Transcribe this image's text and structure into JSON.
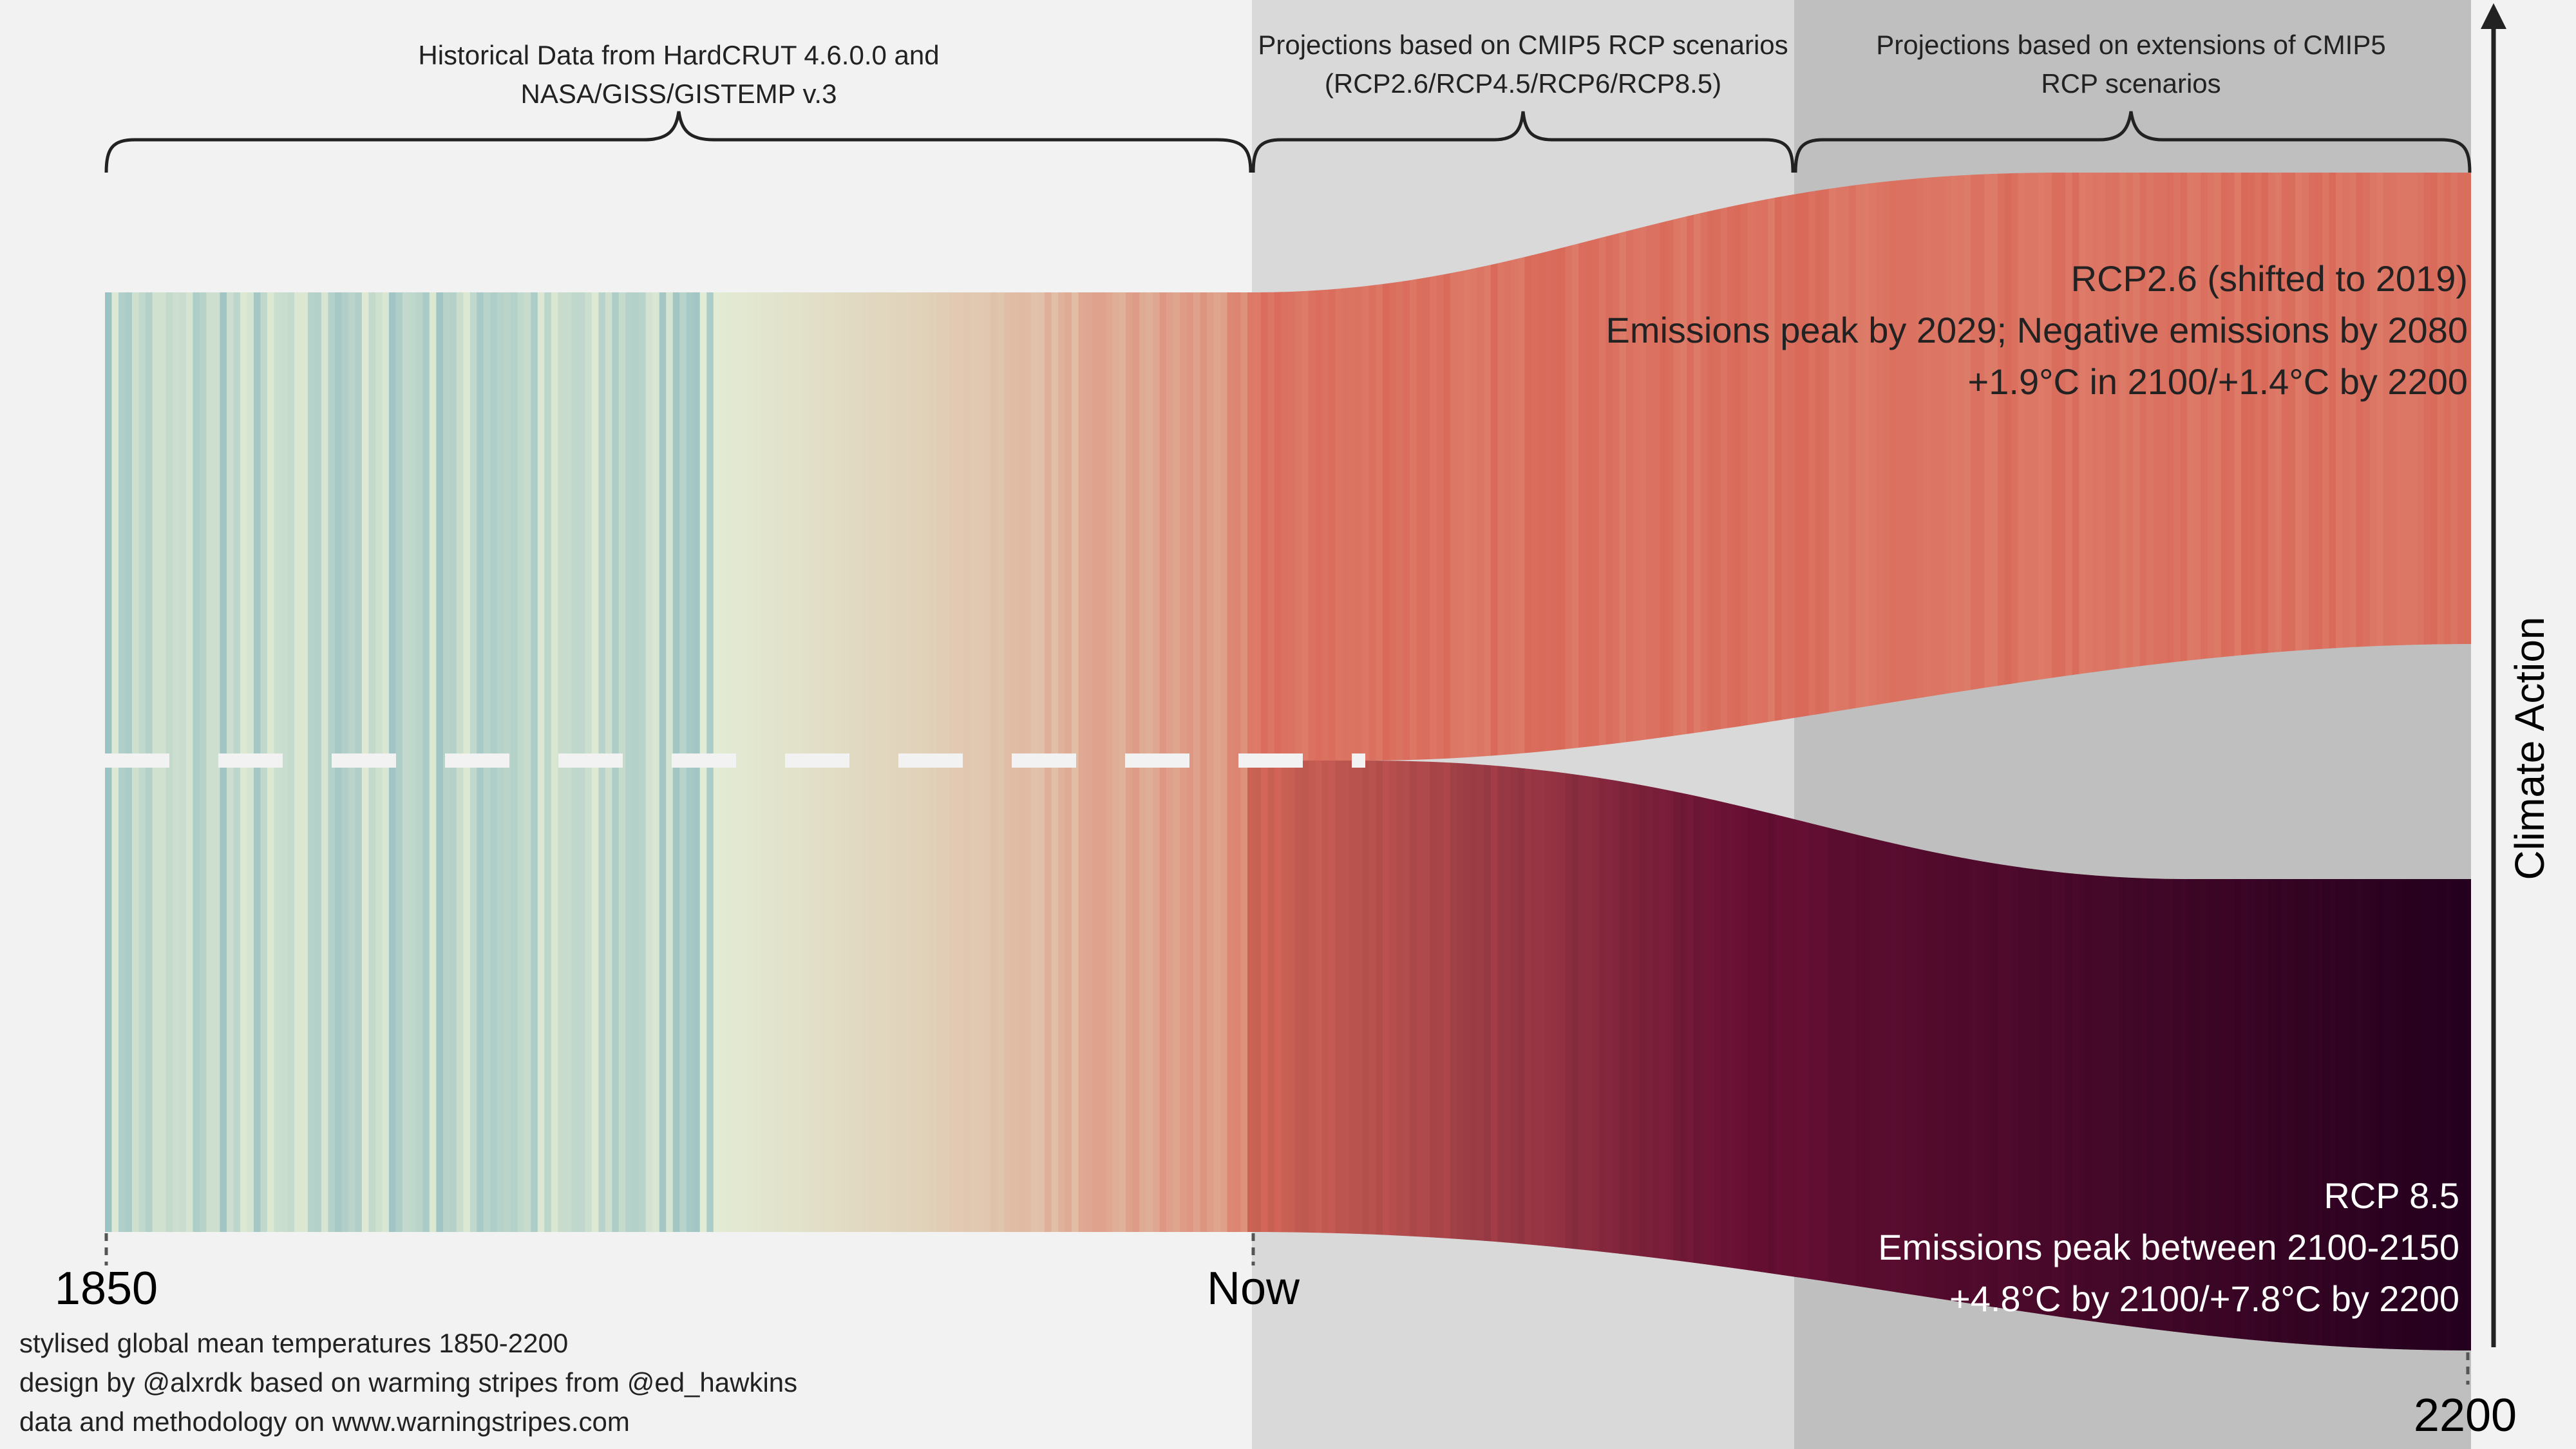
{
  "chart_data": {
    "type": "area",
    "title": "",
    "x_ticks": [
      "1850",
      "Now",
      "2200"
    ],
    "x_range": [
      1850,
      2200
    ],
    "now_year": 2019,
    "sections": [
      {
        "lines": [
          "Historical Data from HardCRUT 4.6.0.0 and",
          "NASA/GISS/GISTEMP v.3"
        ]
      },
      {
        "lines": [
          "Projections based on CMIP5 RCP scenarios",
          "(RCP2.6/RCP4.5/RCP6/RCP8.5)"
        ]
      },
      {
        "lines": [
          "Projections based on extensions of CMIP5",
          "RCP scenarios"
        ]
      }
    ],
    "series": [
      {
        "name": "RCP2.6 (shifted to 2019)",
        "lines": [
          "RCP2.6 (shifted to 2019)",
          "Emissions peak by 2029; Negative emissions by 2080",
          "+1.9°C in 2100/+1.4°C by 2200"
        ],
        "color": "#d4695a"
      },
      {
        "name": "RCP 8.5",
        "lines": [
          "RCP 8.5",
          "Emissions peak between 2100-2150",
          "+4.8°C by 2100/+7.8°C by 2200"
        ],
        "color": "#25001f"
      }
    ],
    "axis_label": "Climate Action",
    "footer": [
      "stylised global mean temperatures 1850-2200",
      "design by @alxrdk based on warming stripes from @ed_hawkins",
      "data and methodology on www.warningstripes.com"
    ]
  },
  "colors": {
    "background": "#f2f2f2",
    "projection_zone": "#d9d9d9",
    "extension_zone": "#bfbfbf",
    "cool": "#9cc3c3",
    "neutral": "#e2ebd4",
    "warm": "#d96a5a",
    "hot": "#25001f"
  }
}
